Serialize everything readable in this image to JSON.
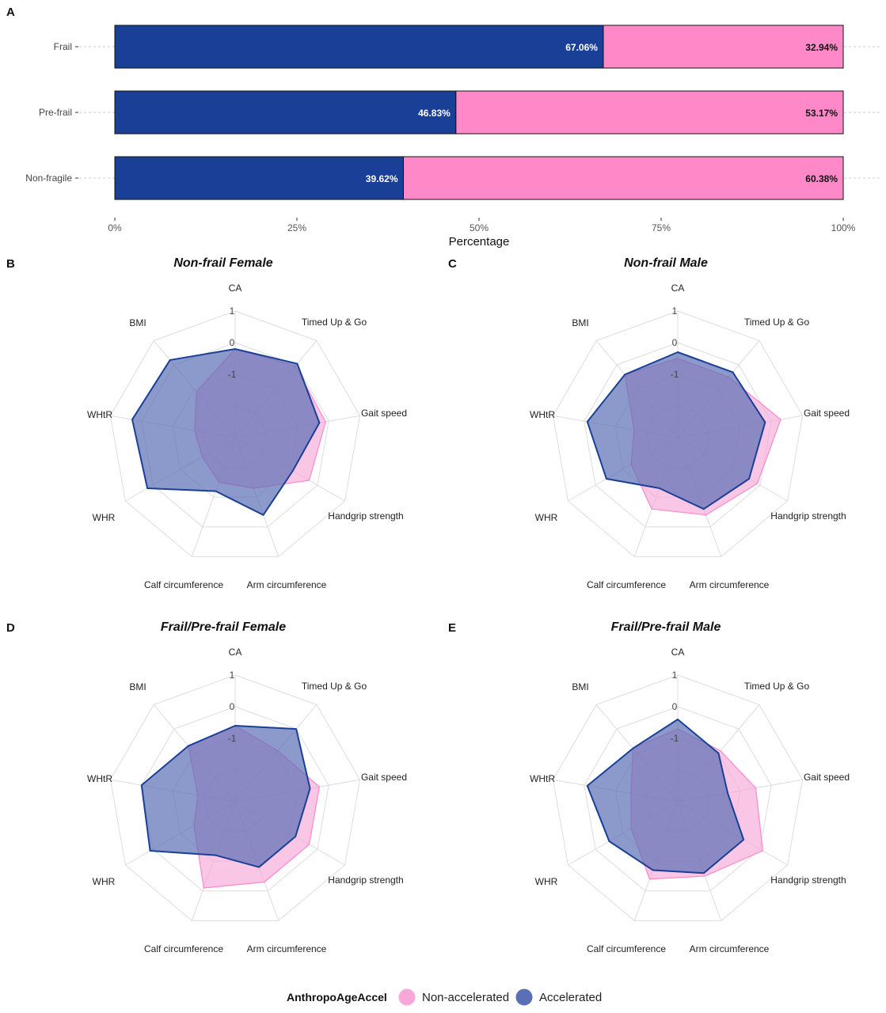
{
  "panels": {
    "a": "A",
    "b": "B",
    "c": "C",
    "d": "D",
    "e": "E"
  },
  "colors": {
    "accelerated": "#1a3f96",
    "non_accelerated": "#ff88c8",
    "accelerated_fill": "#5a6fb5",
    "non_accelerated_fill": "#f7a8d8",
    "grid": "#dddddd"
  },
  "legend": {
    "title": "AnthropoAgeAccel",
    "items": [
      "Non-accelerated",
      "Accelerated"
    ]
  },
  "chart_data": [
    {
      "panel": "A",
      "type": "bar",
      "orientation": "horizontal-stacked",
      "categories": [
        "Frail",
        "Pre-frail",
        "Non-fragile"
      ],
      "series": [
        {
          "name": "Accelerated",
          "values": [
            67.06,
            46.83,
            39.62
          ]
        },
        {
          "name": "Non-accelerated",
          "values": [
            32.94,
            53.17,
            60.38
          ]
        }
      ],
      "value_labels": {
        "Accelerated": [
          "67.06%",
          "46.83%",
          "39.62%"
        ],
        "Non-accelerated": [
          "32.94%",
          "53.17%",
          "60.38%"
        ]
      },
      "xlabel": "Percentage",
      "xticks": [
        "0%",
        "25%",
        "50%",
        "75%",
        "100%"
      ],
      "xlim": [
        0,
        100
      ]
    },
    {
      "panel": "B",
      "type": "radar",
      "title": "Non-frail Female",
      "axes": [
        "CA",
        "Timed Up & Go",
        "Gait speed",
        "Handgrip strength",
        "Arm circumference",
        "Calf circumference",
        "WHR",
        "WHtR",
        "BMI"
      ],
      "rings": [
        "1",
        "0",
        "-1"
      ],
      "rlim": [
        -3,
        1
      ],
      "series": [
        {
          "name": "Non-accelerated",
          "values": [
            -0.2,
            -0.05,
            -0.1,
            -0.3,
            -1.3,
            -1.5,
            -1.8,
            -1.7,
            -1.1
          ]
        },
        {
          "name": "Accelerated",
          "values": [
            -0.2,
            0.05,
            -0.3,
            -0.9,
            -0.4,
            -1.2,
            0.2,
            0.3,
            0.2
          ]
        }
      ]
    },
    {
      "panel": "C",
      "type": "radar",
      "title": "Non-frail Male",
      "axes": [
        "CA",
        "Timed Up & Go",
        "Gait speed",
        "Handgrip strength",
        "Arm circumference",
        "Calf circumference",
        "WHR",
        "WHtR",
        "BMI"
      ],
      "rings": [
        "1",
        "0",
        "-1"
      ],
      "rlim": [
        -3,
        1
      ],
      "series": [
        {
          "name": "Non-accelerated",
          "values": [
            -0.5,
            -0.5,
            0.3,
            -0.1,
            -0.4,
            -0.6,
            -1.3,
            -1.6,
            -0.4
          ]
        },
        {
          "name": "Accelerated",
          "values": [
            -0.3,
            -0.3,
            -0.2,
            -0.4,
            -0.6,
            -1.3,
            -0.4,
            -0.1,
            -0.4
          ]
        }
      ]
    },
    {
      "panel": "D",
      "type": "radar",
      "title": "Frail/Pre-frail Female",
      "axes": [
        "CA",
        "Timed Up & Go",
        "Gait speed",
        "Handgrip strength",
        "Arm circumference",
        "Calf circumference",
        "WHR",
        "WHtR",
        "BMI"
      ],
      "rings": [
        "1",
        "0",
        "-1"
      ],
      "rlim": [
        -3,
        1
      ],
      "series": [
        {
          "name": "Non-accelerated",
          "values": [
            -0.6,
            -0.9,
            -0.3,
            -0.3,
            -0.3,
            -0.1,
            -1.5,
            -1.8,
            -0.7
          ]
        },
        {
          "name": "Accelerated",
          "values": [
            -0.6,
            0.0,
            -0.6,
            -0.8,
            -0.8,
            -1.2,
            0.1,
            0.0,
            -0.7
          ]
        }
      ]
    },
    {
      "panel": "E",
      "type": "radar",
      "title": "Frail/Pre-frail Male",
      "axes": [
        "CA",
        "Timed Up & Go",
        "Gait speed",
        "Handgrip strength",
        "Arm circumference",
        "Calf circumference",
        "WHR",
        "WHtR",
        "BMI"
      ],
      "rings": [
        "1",
        "0",
        "-1"
      ],
      "rlim": [
        -3,
        1
      ],
      "series": [
        {
          "name": "Non-accelerated",
          "values": [
            -0.7,
            -0.9,
            -0.5,
            0.1,
            -0.5,
            -0.4,
            -1.3,
            -1.5,
            -0.8
          ]
        },
        {
          "name": "Accelerated",
          "values": [
            -0.4,
            -1.0,
            -1.4,
            -0.6,
            -0.6,
            -0.7,
            -0.5,
            -0.1,
            -0.8
          ]
        }
      ]
    }
  ]
}
